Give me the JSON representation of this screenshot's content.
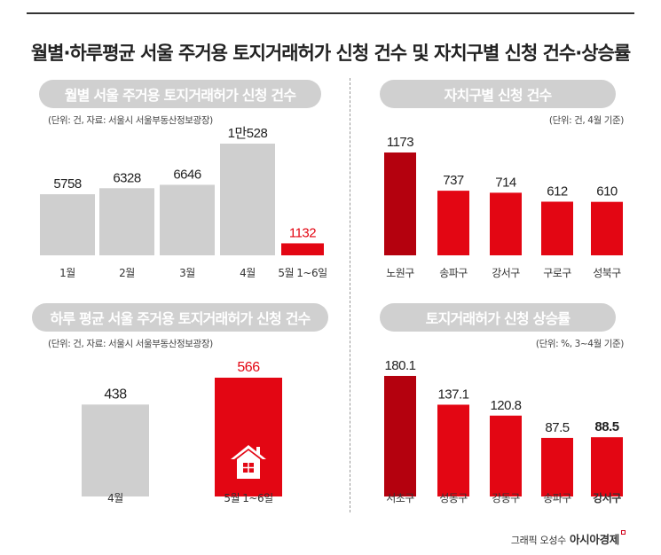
{
  "title": "월별·하루평균 서울 주거용 토지거래허가 신청 건수 및 자치구별 신청 건수·상승률",
  "credit": {
    "prefix": "그래픽 오성수",
    "brand": "아시아경제"
  },
  "colors": {
    "gray": "#cfcfcf",
    "red": "#e30613",
    "dark_red": "#b4010e",
    "pill": "#d0d0d0",
    "text": "#222222"
  },
  "house_icon": "house-icon",
  "chart_data": [
    {
      "id": "monthly",
      "type": "bar",
      "title": "월별 서울 주거용 토지거래허가 신청 건수",
      "unit": "(단위: 건, 자료: 서울시 서울부동산정보광장)",
      "categories": [
        "1월",
        "2월",
        "3월",
        "4월",
        "5월 1~6일"
      ],
      "values": [
        5758,
        6328,
        6646,
        10528,
        1132
      ],
      "value_labels": [
        "5758",
        "6328",
        "6646",
        "1만528",
        "1132"
      ],
      "bar_colors": [
        "gray",
        "gray",
        "gray",
        "gray",
        "red"
      ],
      "label_colors": [
        "text",
        "text",
        "text",
        "text",
        "red"
      ],
      "ylim": [
        0,
        10528
      ]
    },
    {
      "id": "district",
      "type": "bar",
      "title": "자치구별 신청 건수",
      "unit": "(단위: 건, 4월 기준)",
      "categories": [
        "노원구",
        "송파구",
        "강서구",
        "구로구",
        "성북구"
      ],
      "values": [
        1173,
        737,
        714,
        612,
        610
      ],
      "value_labels": [
        "1173",
        "737",
        "714",
        "612",
        "610"
      ],
      "bar_colors": [
        "dark_red",
        "red",
        "red",
        "red",
        "red"
      ],
      "label_colors": [
        "text",
        "text",
        "text",
        "text",
        "text"
      ],
      "ylim": [
        0,
        1173
      ]
    },
    {
      "id": "daily",
      "type": "bar",
      "title": "하루 평균 서울 주거용 토지거래허가 신청 건수",
      "unit": "(단위: 건, 자료: 서울시 서울부동산정보광장)",
      "categories": [
        "4월",
        "5월 1~6일"
      ],
      "values": [
        438,
        566
      ],
      "value_labels": [
        "438",
        "566"
      ],
      "bar_colors": [
        "gray",
        "red"
      ],
      "label_colors": [
        "text",
        "red"
      ],
      "ylim": [
        0,
        566
      ]
    },
    {
      "id": "rate",
      "type": "bar",
      "title": "토지거래허가 신청 상승률",
      "unit": "(단위: %, 3~4월 기준)",
      "categories": [
        "서초구",
        "성동구",
        "강동구",
        "송파구",
        "강서구"
      ],
      "values": [
        180.1,
        137.1,
        120.8,
        87.5,
        88.5
      ],
      "value_labels": [
        "180.1",
        "137.1",
        "120.8",
        "87.5",
        "88.5"
      ],
      "bar_colors": [
        "dark_red",
        "red",
        "red",
        "red",
        "red"
      ],
      "label_colors": [
        "text",
        "text",
        "text",
        "text",
        "text"
      ],
      "ylim": [
        0,
        180.1
      ]
    }
  ]
}
